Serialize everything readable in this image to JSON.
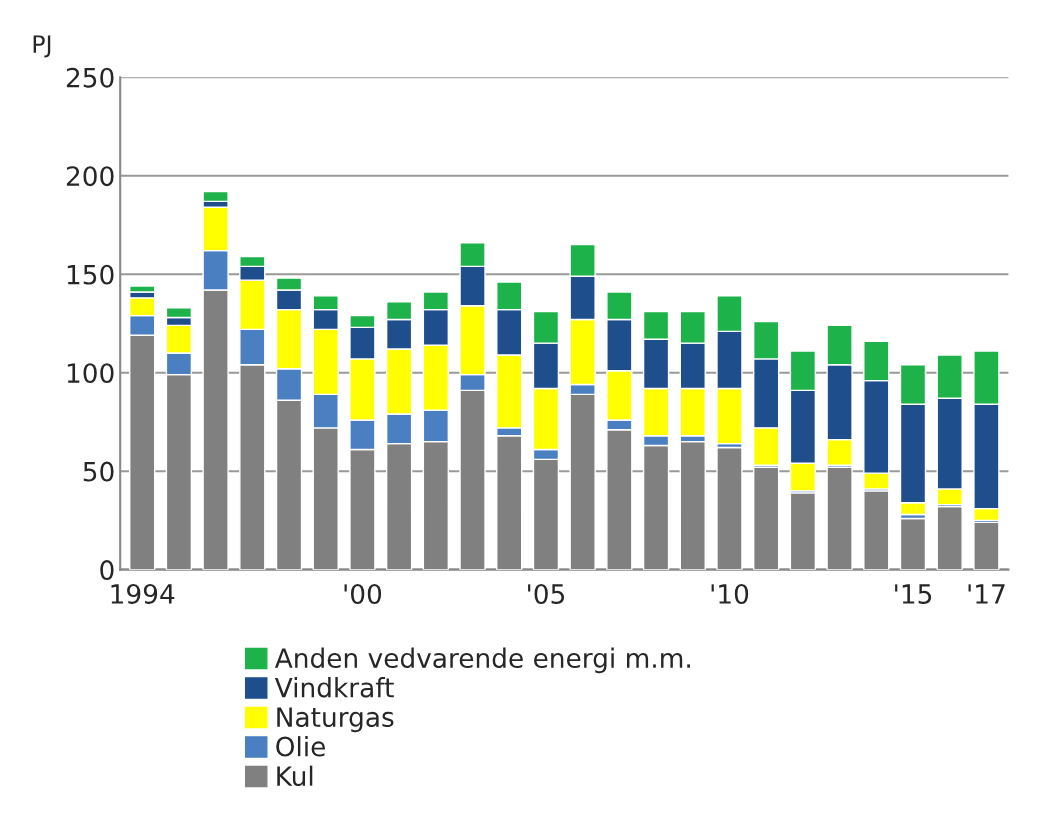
{
  "chart_data": {
    "type": "bar",
    "stacked": true,
    "ylabel": "PJ",
    "categories": [
      "1994",
      null,
      null,
      null,
      null,
      null,
      "'00",
      null,
      null,
      null,
      null,
      "'05",
      null,
      null,
      null,
      null,
      "'10",
      null,
      null,
      null,
      null,
      "'15",
      null,
      "'17"
    ],
    "series": [
      {
        "name": "Kul",
        "color": "#808080",
        "values": [
          119,
          99,
          142,
          104,
          86,
          72,
          61,
          64,
          65,
          91,
          68,
          56,
          89,
          71,
          63,
          65,
          62,
          52,
          39,
          52,
          40,
          26,
          32,
          24
        ]
      },
      {
        "name": "Olie",
        "color": "#4a7fc1",
        "values": [
          10,
          11,
          20,
          18,
          16,
          17,
          15,
          15,
          16,
          8,
          4,
          5,
          5,
          5,
          5,
          3,
          2,
          1,
          1,
          1,
          1,
          2,
          1,
          1
        ]
      },
      {
        "name": "Naturgas",
        "color": "#ffff00",
        "values": [
          9,
          14,
          22,
          25,
          30,
          33,
          31,
          33,
          33,
          35,
          37,
          31,
          33,
          25,
          24,
          24,
          28,
          19,
          14,
          13,
          8,
          6,
          8,
          6
        ]
      },
      {
        "name": "Vindkraft",
        "color": "#1f4e8c",
        "values": [
          3,
          4,
          3,
          7,
          10,
          10,
          16,
          15,
          18,
          20,
          23,
          23,
          22,
          26,
          25,
          23,
          29,
          35,
          37,
          38,
          47,
          50,
          46,
          53
        ]
      },
      {
        "name": "Anden vedvarende energi m.m.",
        "color": "#1db34a",
        "values": [
          3,
          5,
          5,
          5,
          6,
          7,
          6,
          9,
          9,
          12,
          14,
          16,
          16,
          14,
          14,
          16,
          18,
          19,
          20,
          20,
          20,
          20,
          22,
          27
        ]
      }
    ],
    "ylim": [
      0,
      250
    ],
    "yticks": [
      0,
      50,
      100,
      150,
      200,
      250
    ],
    "grid": "y",
    "legend": "bottom"
  }
}
